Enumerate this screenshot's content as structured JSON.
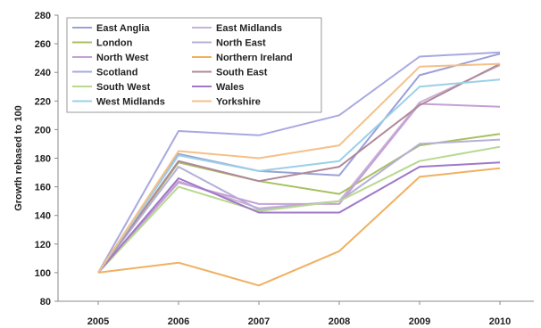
{
  "chart_data": {
    "type": "line",
    "title": "",
    "xlabel": "",
    "ylabel": "Growth rebased to 100",
    "ylim": [
      80,
      280
    ],
    "yticks": [
      80,
      100,
      120,
      140,
      160,
      180,
      200,
      220,
      240,
      260,
      280
    ],
    "categories": [
      "2005",
      "2006",
      "2007",
      "2008",
      "2009",
      "2010"
    ],
    "grid": false,
    "legend_position": "top-left",
    "series": [
      {
        "name": "East Anglia",
        "color": "#9aa0d8",
        "values": [
          100,
          183,
          171,
          168,
          238,
          253
        ]
      },
      {
        "name": "East Midlands",
        "color": "#c9b2d8",
        "values": [
          100,
          164,
          145,
          150,
          219,
          245
        ]
      },
      {
        "name": "London",
        "color": "#a8c060",
        "values": [
          100,
          177,
          164,
          155,
          189,
          197
        ]
      },
      {
        "name": "North East",
        "color": "#b4b0d6",
        "values": [
          100,
          174,
          144,
          150,
          190,
          193
        ]
      },
      {
        "name": "North West",
        "color": "#c4a0d6",
        "values": [
          100,
          163,
          148,
          148,
          218,
          216
        ]
      },
      {
        "name": "Northern Ireland",
        "color": "#f0b060",
        "values": [
          100,
          107,
          91,
          115,
          167,
          173
        ]
      },
      {
        "name": "Scotland",
        "color": "#a8a8e2",
        "values": [
          100,
          199,
          196,
          210,
          251,
          254
        ]
      },
      {
        "name": "South East",
        "color": "#b08898",
        "values": [
          100,
          178,
          164,
          174,
          217,
          246
        ]
      },
      {
        "name": "South West",
        "color": "#b8d890",
        "values": [
          100,
          160,
          143,
          150,
          178,
          188
        ]
      },
      {
        "name": "Wales",
        "color": "#a078c8",
        "values": [
          100,
          166,
          142,
          142,
          174,
          177
        ]
      },
      {
        "name": "West Midlands",
        "color": "#9ad0e8",
        "values": [
          100,
          182,
          171,
          178,
          230,
          235
        ]
      },
      {
        "name": "Yorkshire",
        "color": "#f4c088",
        "values": [
          100,
          185,
          180,
          189,
          244,
          246
        ]
      }
    ]
  }
}
